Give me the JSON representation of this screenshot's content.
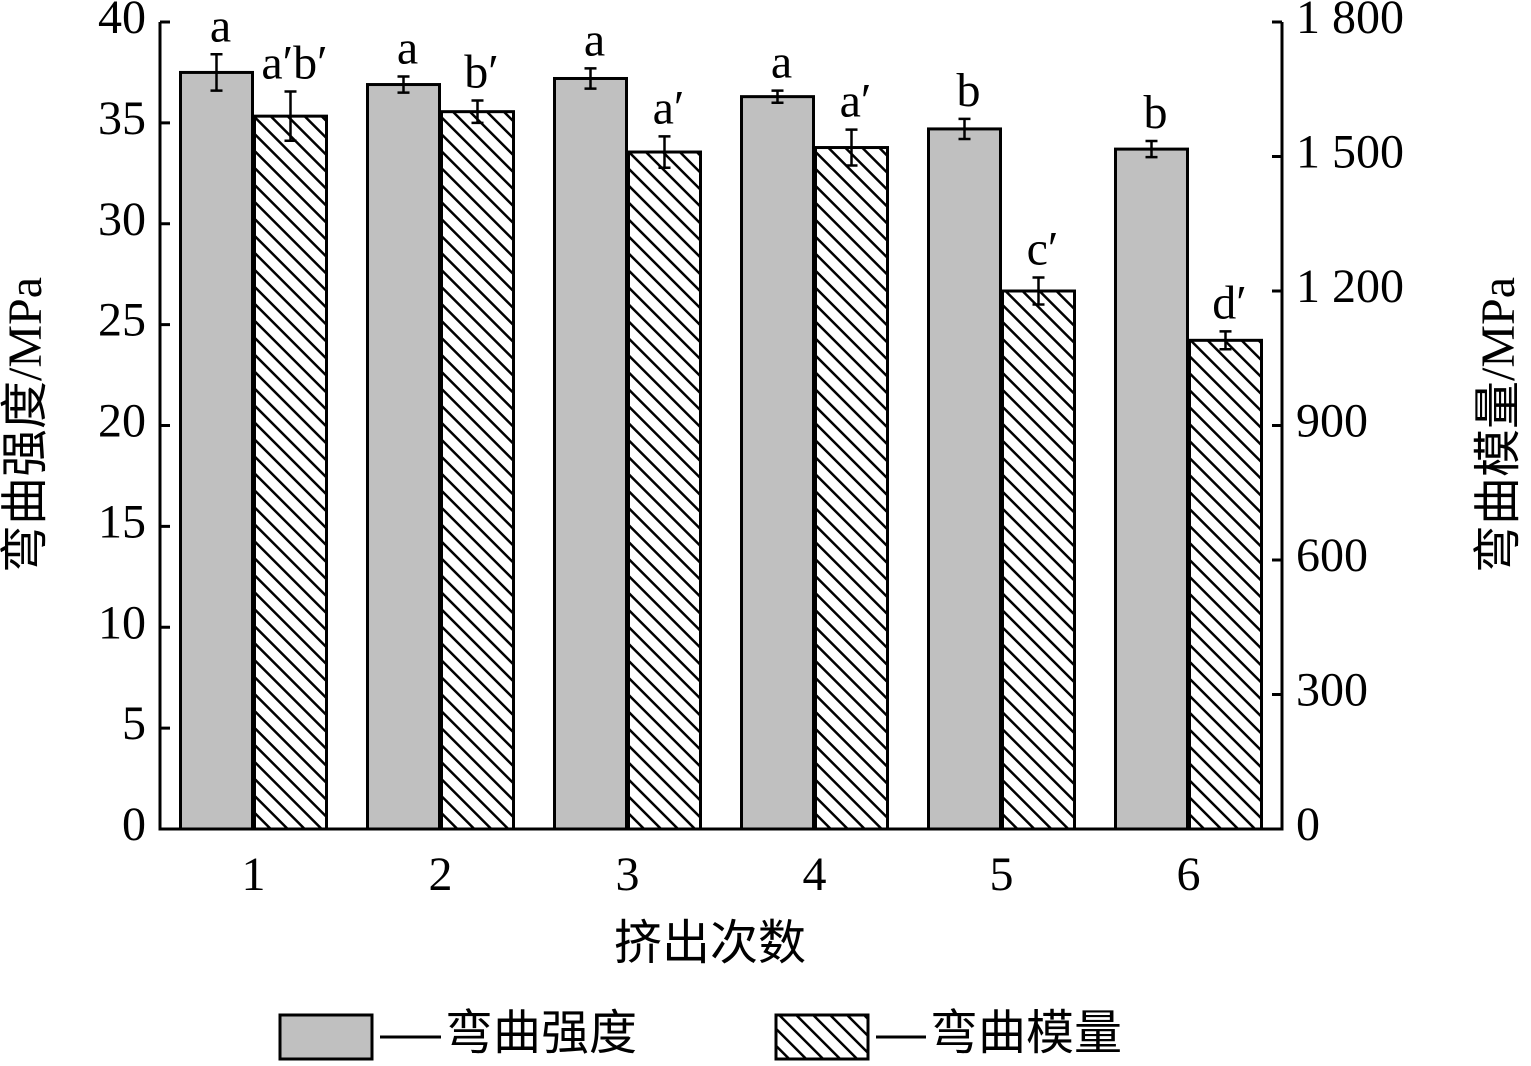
{
  "chart_data": {
    "type": "bar",
    "x_label": "挤出次数",
    "y_label": "弯曲强度/MPa",
    "y2_label": "弯曲模量/MPa",
    "categories": [
      "1",
      "2",
      "3",
      "4",
      "5",
      "6"
    ],
    "series": [
      {
        "name": "弯曲强度",
        "color": "#c0c0c0",
        "axis": "y",
        "values": [
          37.5,
          36.9,
          37.2,
          36.3,
          34.7,
          33.7
        ],
        "errors": [
          0.9,
          0.4,
          0.5,
          0.3,
          0.5,
          0.4
        ],
        "letters": [
          "a",
          "a",
          "a",
          "a",
          "b",
          "b"
        ]
      },
      {
        "name": "弯曲模量",
        "color": "#000000",
        "pattern": "hatch",
        "axis": "y2",
        "values": [
          1590,
          1600,
          1510,
          1520,
          1200,
          1090
        ],
        "errors": [
          55,
          25,
          35,
          40,
          30,
          20
        ],
        "letters": [
          "a′b′",
          "b′",
          "a′",
          "a′",
          "c′",
          "d′"
        ]
      }
    ],
    "ylim": [
      0,
      40
    ],
    "yticks": [
      0,
      5,
      10,
      15,
      20,
      25,
      30,
      35,
      40
    ],
    "y2lim": [
      0,
      1800
    ],
    "y2ticks": [
      0,
      300,
      600,
      900,
      {
        "value": 1200,
        "label": "1 200"
      },
      {
        "value": 1500,
        "label": "1 500"
      },
      {
        "value": 1800,
        "label": "1 800"
      }
    ]
  }
}
